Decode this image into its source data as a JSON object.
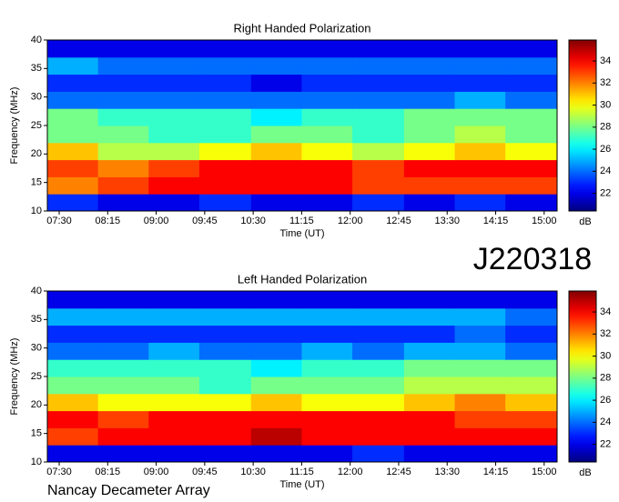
{
  "header": {
    "code": "J220318",
    "observatory": "Nancay Decameter Array"
  },
  "chart_data": [
    {
      "type": "heatmap",
      "title": "Right Handed Polarization",
      "x_label": "Time (UT)",
      "y_label": "Frequency (MHz)",
      "xlim": [
        439,
        912
      ],
      "xticks": [
        {
          "value": 450,
          "label": "07:30"
        },
        {
          "value": 495,
          "label": "08:15"
        },
        {
          "value": 540,
          "label": "09:00"
        },
        {
          "value": 585,
          "label": "09:45"
        },
        {
          "value": 630,
          "label": "10:30"
        },
        {
          "value": 675,
          "label": "11:15"
        },
        {
          "value": 720,
          "label": "12:00"
        },
        {
          "value": 765,
          "label": "12:45"
        },
        {
          "value": 810,
          "label": "13:30"
        },
        {
          "value": 855,
          "label": "14:15"
        },
        {
          "value": 900,
          "label": "15:00"
        }
      ],
      "ylim": [
        10,
        40
      ],
      "yticks": [
        10,
        15,
        20,
        25,
        30,
        35,
        40
      ],
      "xbins": [
        439,
        486,
        533,
        580,
        628,
        675,
        722,
        770,
        817,
        864,
        912
      ],
      "ybins": [
        10,
        13,
        16,
        19,
        22,
        25,
        28,
        31,
        34,
        37,
        40
      ],
      "values": [
        [
          23,
          22,
          22,
          23,
          22,
          22,
          23,
          22,
          23,
          22
        ],
        [
          32,
          33,
          34,
          34,
          34,
          34,
          33,
          33,
          33,
          33
        ],
        [
          33,
          32,
          33,
          34,
          34,
          34,
          33,
          34,
          34,
          34
        ],
        [
          31,
          29,
          29,
          30,
          31,
          30,
          29,
          30,
          31,
          30
        ],
        [
          28,
          28,
          27,
          27,
          28,
          28,
          27,
          28,
          29,
          28
        ],
        [
          28,
          27,
          27,
          27,
          26,
          27,
          27,
          28,
          28,
          28
        ],
        [
          24,
          24,
          24,
          24,
          24,
          24,
          24,
          24,
          25,
          24
        ],
        [
          23,
          23,
          23,
          23,
          22,
          23,
          23,
          23,
          23,
          23
        ],
        [
          25,
          24,
          24,
          24,
          24,
          24,
          24,
          24,
          24,
          24
        ],
        [
          22,
          22,
          22,
          22,
          22,
          22,
          22,
          22,
          22,
          22
        ]
      ],
      "colormap": "jet",
      "zlim": [
        20.4,
        35.9
      ],
      "zticks": [
        22,
        24,
        26,
        28,
        30,
        32,
        34
      ],
      "z_label": "dB"
    },
    {
      "type": "heatmap",
      "title": "Left Handed Polarization",
      "x_label": "Time (UT)",
      "y_label": "Frequency (MHz)",
      "xlim": [
        439,
        912
      ],
      "xticks": [
        {
          "value": 450,
          "label": "07:30"
        },
        {
          "value": 495,
          "label": "08:15"
        },
        {
          "value": 540,
          "label": "09:00"
        },
        {
          "value": 585,
          "label": "09:45"
        },
        {
          "value": 630,
          "label": "10:30"
        },
        {
          "value": 675,
          "label": "11:15"
        },
        {
          "value": 720,
          "label": "12:00"
        },
        {
          "value": 765,
          "label": "12:45"
        },
        {
          "value": 810,
          "label": "13:30"
        },
        {
          "value": 855,
          "label": "14:15"
        },
        {
          "value": 900,
          "label": "15:00"
        }
      ],
      "ylim": [
        10,
        40
      ],
      "yticks": [
        10,
        15,
        20,
        25,
        30,
        35,
        40
      ],
      "xbins": [
        439,
        486,
        533,
        580,
        628,
        675,
        722,
        770,
        817,
        864,
        912
      ],
      "ybins": [
        10,
        13,
        16,
        19,
        22,
        25,
        28,
        31,
        34,
        37,
        40
      ],
      "values": [
        [
          22,
          22,
          22,
          22,
          22,
          22,
          23,
          22,
          22,
          22
        ],
        [
          33,
          34,
          34,
          34,
          35,
          34,
          34,
          34,
          34,
          34
        ],
        [
          34,
          33,
          34,
          34,
          34,
          34,
          34,
          34,
          33,
          33
        ],
        [
          31,
          30,
          30,
          30,
          31,
          30,
          30,
          31,
          32,
          31
        ],
        [
          28,
          28,
          28,
          27,
          28,
          28,
          28,
          29,
          29,
          29
        ],
        [
          27,
          27,
          27,
          27,
          26,
          27,
          27,
          28,
          28,
          28
        ],
        [
          24,
          24,
          25,
          24,
          24,
          25,
          24,
          25,
          25,
          24
        ],
        [
          23,
          23,
          23,
          23,
          23,
          23,
          23,
          23,
          24,
          23
        ],
        [
          25,
          25,
          25,
          25,
          25,
          25,
          25,
          25,
          25,
          24
        ],
        [
          22,
          22,
          22,
          22,
          22,
          22,
          22,
          22,
          22,
          22
        ]
      ],
      "colormap": "jet",
      "zlim": [
        20.4,
        35.9
      ],
      "zticks": [
        22,
        24,
        26,
        28,
        30,
        32,
        34
      ],
      "z_label": "dB"
    }
  ]
}
